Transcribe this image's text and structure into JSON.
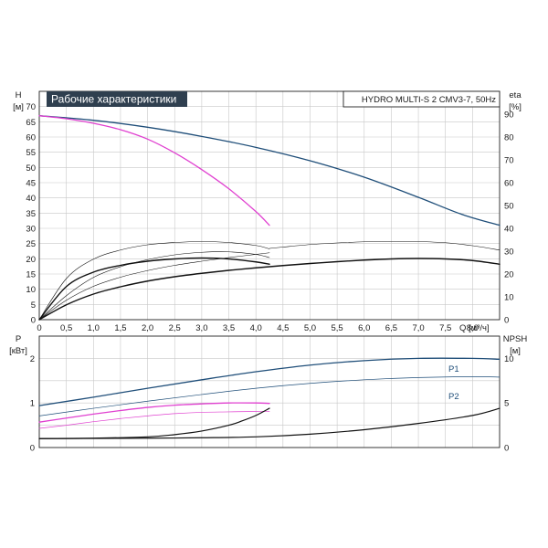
{
  "chart_data": [
    {
      "type": "line",
      "title": "Рабочие характеристики",
      "model": "HYDRO MULTI-S 2 CMV3-7, 50Hz",
      "xlabel": "Q [м³/ч]",
      "ylabel_left": "H",
      "ylabel_left_unit": "[м]",
      "ylabel_right": "eta",
      "ylabel_right_unit": "[%]",
      "xlim": [
        0,
        8.5
      ],
      "ylim_left": [
        0,
        75
      ],
      "ylim_right": [
        0,
        100
      ],
      "x_ticks": [
        "0",
        "0,5",
        "1,0",
        "1,5",
        "2,0",
        "2,5",
        "3,0",
        "3,5",
        "4,0",
        "4,5",
        "5,0",
        "5,5",
        "6,0",
        "6,5",
        "7,0",
        "7,5",
        "8,0"
      ],
      "y_ticks_left": [
        "0",
        "5",
        "10",
        "15",
        "20",
        "25",
        "30",
        "35",
        "40",
        "45",
        "50",
        "55",
        "60",
        "65",
        "70"
      ],
      "y_ticks_right": [
        "0",
        "10",
        "20",
        "30",
        "40",
        "50",
        "60",
        "70",
        "80",
        "90"
      ],
      "series": [
        {
          "axis": "left",
          "color": "#1f4e79",
          "width": 1.3,
          "x": [
            0,
            1,
            2,
            3,
            4,
            5,
            6,
            7,
            7.8,
            8.5
          ],
          "y": [
            67,
            65.5,
            63.2,
            60.2,
            56.6,
            52.2,
            46.8,
            40.2,
            34.6,
            31
          ]
        },
        {
          "axis": "left",
          "color": "#e040d0",
          "width": 1.3,
          "x": [
            0,
            0.5,
            1,
            1.5,
            2,
            2.5,
            3,
            3.5,
            4,
            4.25
          ],
          "y": [
            67,
            66,
            64.5,
            62.4,
            59.3,
            54.8,
            49.3,
            43,
            35.5,
            31
          ]
        },
        {
          "axis": "right",
          "color": "#111111",
          "width": 0.6,
          "x": [
            0,
            0.5,
            1,
            1.5,
            2,
            2.5,
            3,
            3.5,
            4,
            4.25
          ],
          "y": [
            0,
            18,
            26.5,
            30.5,
            32.8,
            33.8,
            34.2,
            33.8,
            32.5,
            31
          ]
        },
        {
          "axis": "right",
          "color": "#111111",
          "width": 0.6,
          "x": [
            4.25,
            4.5,
            5,
            5.5,
            6,
            6.5,
            7,
            7.5,
            8,
            8.5
          ],
          "y": [
            31.2,
            31.8,
            32.9,
            33.6,
            34.1,
            34.3,
            34.2,
            33.7,
            32.4,
            30.5
          ]
        },
        {
          "axis": "right",
          "color": "#111111",
          "width": 0.6,
          "x": [
            0,
            0.5,
            1,
            1.5,
            2,
            2.5,
            3,
            3.5,
            4,
            4.25
          ],
          "y": [
            0,
            10.5,
            18.5,
            23.2,
            26.3,
            28.4,
            29.5,
            29.7,
            28.6,
            27.2
          ]
        },
        {
          "axis": "right",
          "color": "#111111",
          "width": 0.6,
          "x": [
            0,
            0.5,
            1,
            1.5,
            2,
            2.5,
            3,
            3.5,
            4,
            4.25
          ],
          "y": [
            0,
            8.5,
            14.6,
            18.6,
            21.5,
            23.8,
            25.6,
            27.2,
            28.6,
            29.3
          ]
        },
        {
          "axis": "right",
          "color": "#111111",
          "width": 1.4,
          "x": [
            0,
            0.5,
            1,
            1.5,
            2,
            2.5,
            3,
            3.5,
            4,
            4.25
          ],
          "y": [
            0,
            14.5,
            20.8,
            23.8,
            25.6,
            26.6,
            27.0,
            26.6,
            25.3,
            24.3
          ]
        },
        {
          "axis": "right",
          "color": "#111111",
          "width": 1.4,
          "x": [
            0,
            0.5,
            1,
            1.5,
            2,
            2.5,
            3,
            3.5,
            4,
            4.5,
            5,
            5.5,
            6,
            6.5,
            7,
            7.5,
            8,
            8.5
          ],
          "y": [
            0,
            6.5,
            11.2,
            14.4,
            16.9,
            18.8,
            20.3,
            21.6,
            22.7,
            23.7,
            24.6,
            25.4,
            26.1,
            26.6,
            26.8,
            26.6,
            25.9,
            24.3
          ]
        }
      ]
    },
    {
      "type": "line",
      "ylabel_left": "P",
      "ylabel_left_unit": "[кВт]",
      "ylabel_right": "NPSH",
      "ylabel_right_unit": "[м]",
      "xlim": [
        0,
        8.5
      ],
      "ylim_left": [
        0,
        2.5
      ],
      "ylim_right": [
        0,
        12.5
      ],
      "y_ticks_left": [
        "0",
        "1",
        "2"
      ],
      "y_ticks_right": [
        "0",
        "5",
        "10"
      ],
      "labels": [
        "P1",
        "P2"
      ],
      "series": [
        {
          "name": "P1",
          "axis": "left",
          "color": "#1f4e79",
          "width": 1.3,
          "x": [
            0,
            1,
            2,
            3,
            4,
            5,
            6,
            7,
            8,
            8.5
          ],
          "y": [
            0.94,
            1.13,
            1.33,
            1.52,
            1.7,
            1.85,
            1.95,
            2.0,
            2.0,
            1.98
          ]
        },
        {
          "name": "P2",
          "axis": "left",
          "color": "#1f4e79",
          "width": 0.7,
          "x": [
            0,
            1,
            2,
            3,
            4,
            5,
            6,
            7,
            8,
            8.5
          ],
          "y": [
            0.71,
            0.88,
            1.04,
            1.19,
            1.33,
            1.44,
            1.52,
            1.57,
            1.59,
            1.58
          ]
        },
        {
          "axis": "left",
          "color": "#e040d0",
          "width": 1.3,
          "x": [
            0,
            0.5,
            1,
            1.5,
            2,
            2.5,
            3,
            3.5,
            4,
            4.25
          ],
          "y": [
            0.57,
            0.66,
            0.75,
            0.83,
            0.9,
            0.95,
            0.98,
            1.0,
            1.0,
            0.99
          ]
        },
        {
          "axis": "left",
          "color": "#e040d0",
          "width": 0.7,
          "x": [
            0,
            0.5,
            1,
            1.5,
            2,
            2.5,
            3,
            3.5,
            4,
            4.25
          ],
          "y": [
            0.43,
            0.5,
            0.58,
            0.65,
            0.71,
            0.76,
            0.79,
            0.8,
            0.81,
            0.81
          ]
        },
        {
          "axis": "right",
          "color": "#111111",
          "width": 1.2,
          "x": [
            0,
            1,
            2,
            2.5,
            3,
            3.5,
            3.75,
            4,
            4.25
          ],
          "y": [
            1.0,
            1.05,
            1.2,
            1.45,
            1.85,
            2.5,
            3.0,
            3.6,
            4.4
          ]
        },
        {
          "axis": "right",
          "color": "#111111",
          "width": 1.2,
          "x": [
            0,
            1,
            2,
            3,
            4,
            5,
            6,
            7,
            8,
            8.5
          ],
          "y": [
            1.0,
            1.02,
            1.05,
            1.1,
            1.2,
            1.5,
            2.0,
            2.7,
            3.6,
            4.4
          ]
        }
      ]
    }
  ]
}
